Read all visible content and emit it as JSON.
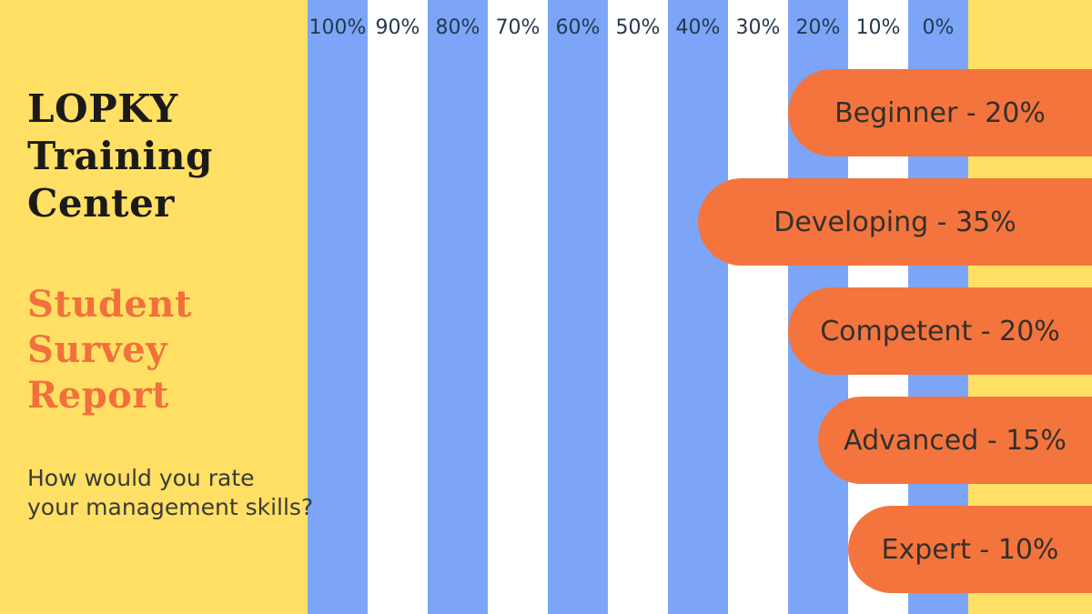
{
  "panel": {
    "title_lines": [
      "LOPKY",
      "Training",
      "Center"
    ],
    "subtitle_lines": [
      "Student",
      "Survey",
      "Report"
    ],
    "question_lines": [
      "How would you rate",
      "your management skills?"
    ]
  },
  "chart_data": {
    "type": "bar",
    "orientation": "horizontal, right-anchored (bars grow leftward from right edge)",
    "title": "Student Survey Report",
    "subtitle": "LOPKY Training Center",
    "question": "How would you rate your management skills?",
    "categories": [
      "Beginner",
      "Developing",
      "Competent",
      "Advanced",
      "Expert"
    ],
    "values": [
      20,
      35,
      20,
      15,
      10
    ],
    "bar_labels": [
      "Beginner - 20%",
      "Developing - 35%",
      "Competent - 20%",
      "Advanced - 15%",
      "Expert - 10%"
    ],
    "axis": {
      "ticks": [
        "100%",
        "90%",
        "80%",
        "70%",
        "60%",
        "50%",
        "40%",
        "30%",
        "20%",
        "10%",
        "0%"
      ],
      "min": 0,
      "max": 100,
      "unit": "%",
      "direction": "right-to-left",
      "tick_position": "top",
      "grid": "alternating vertical stripes, blue under even ticks starting at 100%"
    },
    "legend": "none",
    "colors": {
      "bar": "#F4743D",
      "bar_label_text": "#33302C",
      "stripe_blue": "#7CA5F8",
      "stripe_white": "#FFFFFF",
      "background_yellow": "#FFE064",
      "axis_tick_text": "#25384B",
      "title_text": "#1C1A19",
      "subtitle_text": "#F1703C",
      "question_text": "#3B3A39"
    }
  }
}
